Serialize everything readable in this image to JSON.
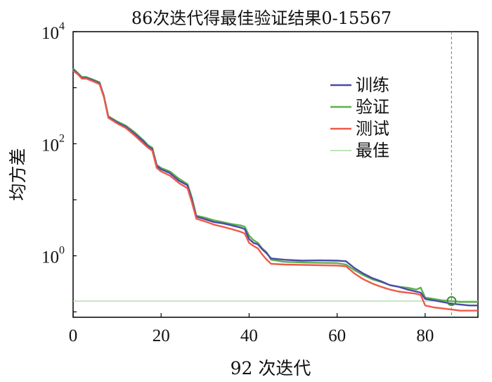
{
  "chart_data": {
    "type": "line",
    "title": "86次迭代得最佳验证结果0-15567",
    "xlabel": "92 次迭代",
    "ylabel": "均方差",
    "yscale": "log",
    "xlim": [
      0,
      92
    ],
    "ylim": [
      0.08,
      10000
    ],
    "x_ticks": [
      0,
      20,
      40,
      60,
      80
    ],
    "y_ticks": [
      {
        "value": 1,
        "base": "10",
        "exp": "0"
      },
      {
        "value": 100,
        "base": "10",
        "exp": "2"
      },
      {
        "value": 10000,
        "base": "10",
        "exp": "4"
      }
    ],
    "legend_position": "top-right",
    "best": {
      "x": 86,
      "y": 0.15567
    },
    "series": [
      {
        "name": "训练",
        "color": "#4a4aa8",
        "x": [
          0,
          1,
          2,
          3,
          4,
          5,
          6,
          7,
          8,
          10,
          12,
          14,
          16,
          17,
          18,
          19,
          20,
          22,
          24,
          26,
          27,
          28,
          30,
          32,
          34,
          36,
          38,
          39,
          40,
          41,
          42,
          43,
          44,
          45,
          48,
          52,
          56,
          60,
          62,
          64,
          66,
          68,
          70,
          72,
          74,
          76,
          78,
          79,
          80,
          82,
          84,
          86,
          88,
          90,
          92
        ],
        "y": [
          2100,
          1800,
          1500,
          1500,
          1400,
          1300,
          1200,
          700,
          300,
          240,
          200,
          150,
          110,
          90,
          80,
          40,
          35,
          30,
          22,
          18,
          10,
          5,
          4.5,
          4,
          3.8,
          3.5,
          3.2,
          3,
          2,
          1.7,
          1.6,
          1.3,
          1.1,
          0.9,
          0.85,
          0.82,
          0.83,
          0.82,
          0.8,
          0.6,
          0.48,
          0.4,
          0.35,
          0.3,
          0.28,
          0.25,
          0.23,
          0.22,
          0.17,
          0.16,
          0.15,
          0.14,
          0.135,
          0.13,
          0.13
        ]
      },
      {
        "name": "验证",
        "color": "#5db04d",
        "x": [
          0,
          1,
          2,
          3,
          4,
          5,
          6,
          7,
          8,
          10,
          12,
          14,
          16,
          17,
          18,
          19,
          20,
          22,
          24,
          26,
          27,
          28,
          30,
          32,
          34,
          36,
          38,
          39,
          40,
          41,
          42,
          43,
          44,
          45,
          48,
          52,
          56,
          60,
          62,
          64,
          66,
          68,
          70,
          72,
          74,
          76,
          78,
          79,
          80,
          82,
          84,
          86,
          88,
          90,
          92
        ],
        "y": [
          2200,
          1850,
          1550,
          1550,
          1450,
          1350,
          1250,
          720,
          310,
          250,
          210,
          160,
          115,
          95,
          85,
          42,
          37,
          32,
          24,
          19,
          11,
          5.2,
          4.8,
          4.3,
          4,
          3.7,
          3.5,
          3.3,
          2.3,
          1.9,
          1.7,
          1.35,
          1.15,
          0.85,
          0.78,
          0.76,
          0.75,
          0.74,
          0.7,
          0.55,
          0.45,
          0.38,
          0.34,
          0.3,
          0.28,
          0.27,
          0.25,
          0.27,
          0.18,
          0.17,
          0.16,
          0.156,
          0.15,
          0.15,
          0.15
        ]
      },
      {
        "name": "测试",
        "color": "#ee5a4a",
        "x": [
          0,
          1,
          2,
          3,
          4,
          5,
          6,
          7,
          8,
          10,
          12,
          14,
          16,
          17,
          18,
          19,
          20,
          22,
          24,
          26,
          27,
          28,
          30,
          32,
          34,
          36,
          38,
          39,
          40,
          41,
          42,
          43,
          44,
          45,
          48,
          52,
          56,
          60,
          62,
          64,
          66,
          68,
          70,
          72,
          74,
          76,
          78,
          79,
          80,
          82,
          84,
          86,
          88,
          90,
          92
        ],
        "y": [
          2000,
          1750,
          1450,
          1450,
          1350,
          1250,
          1150,
          680,
          290,
          230,
          190,
          140,
          100,
          85,
          75,
          37,
          32,
          27,
          20,
          16,
          9,
          4.6,
          4.1,
          3.6,
          3.3,
          3,
          2.7,
          2.5,
          1.7,
          1.5,
          1.35,
          1.05,
          0.85,
          0.72,
          0.7,
          0.69,
          0.68,
          0.67,
          0.65,
          0.48,
          0.38,
          0.32,
          0.28,
          0.25,
          0.23,
          0.22,
          0.21,
          0.2,
          0.13,
          0.12,
          0.115,
          0.11,
          0.105,
          0.105,
          0.105
        ]
      },
      {
        "name": "最佳",
        "color": "#a8d8a0",
        "x": [],
        "y": []
      }
    ]
  }
}
